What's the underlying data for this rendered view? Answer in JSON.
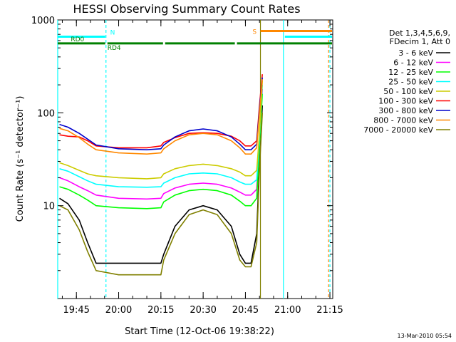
{
  "chart_data": {
    "type": "line",
    "title": "HESSI Observing Summary Count Rates",
    "xlabel": "Start Time (12-Oct-06 19:38:22)",
    "ylabel": "Count Rate (s⁻¹ detector⁻¹)",
    "xlim": [
      "19:38:22",
      "21:16:00"
    ],
    "ylim": [
      1,
      1000
    ],
    "y_scale": "log",
    "x_ticks": [
      "19:45",
      "20:00",
      "20:15",
      "20:30",
      "20:45",
      "21:00",
      "21:15"
    ],
    "y_ticks": [
      "1000",
      "100",
      "10"
    ],
    "legend_header": [
      "Det 1,3,4,5,6,9,",
      "FDecim 1, Att 0"
    ],
    "legend_position": "right",
    "series": [
      {
        "name": "3 - 6 keV",
        "color": "#000000",
        "x": [
          "19:39",
          "19:42",
          "19:46",
          "19:49",
          "19:52",
          "20:00",
          "20:10",
          "20:15",
          "20:16",
          "20:20",
          "20:25",
          "20:30",
          "20:35",
          "20:40",
          "20:43",
          "20:45",
          "20:47",
          "20:49",
          "20:50",
          "20:51"
        ],
        "values": [
          12,
          10.5,
          7,
          4,
          2.4,
          2.4,
          2.4,
          2.4,
          3,
          6,
          9,
          10,
          9,
          6,
          3,
          2.4,
          2.4,
          5,
          30,
          120
        ]
      },
      {
        "name": "6 - 12 keV",
        "color": "#ff00ff",
        "x": [
          "19:39",
          "19:42",
          "19:46",
          "19:49",
          "19:52",
          "20:00",
          "20:10",
          "20:15",
          "20:16",
          "20:20",
          "20:25",
          "20:30",
          "20:35",
          "20:40",
          "20:43",
          "20:45",
          "20:47",
          "20:49",
          "20:50",
          "20:51"
        ],
        "values": [
          20,
          18.5,
          16,
          14.5,
          13,
          12,
          11.8,
          12,
          13.5,
          15.5,
          17,
          17.5,
          17,
          15.5,
          14,
          13,
          13,
          15,
          50,
          180
        ]
      },
      {
        "name": "12 - 25 keV",
        "color": "#00ff00",
        "x": [
          "19:39",
          "19:42",
          "19:46",
          "19:49",
          "19:52",
          "20:00",
          "20:10",
          "20:15",
          "20:16",
          "20:20",
          "20:25",
          "20:30",
          "20:35",
          "20:40",
          "20:43",
          "20:45",
          "20:47",
          "20:49",
          "20:50",
          "20:51"
        ],
        "values": [
          16,
          15,
          13,
          11.5,
          10,
          9.5,
          9.3,
          9.5,
          11,
          13,
          14.5,
          15,
          14.5,
          13,
          11.2,
          10,
          10,
          12,
          45,
          160
        ]
      },
      {
        "name": "25 - 50 keV",
        "color": "#00ffff",
        "x": [
          "19:39",
          "19:42",
          "19:46",
          "19:49",
          "19:52",
          "20:00",
          "20:10",
          "20:15",
          "20:16",
          "20:20",
          "20:25",
          "20:30",
          "20:35",
          "20:40",
          "20:43",
          "20:45",
          "20:47",
          "20:49",
          "20:50",
          "20:51"
        ],
        "values": [
          25,
          23.5,
          20.5,
          18.5,
          17,
          16,
          15.8,
          16,
          17.5,
          20,
          22,
          22.5,
          22,
          20,
          18,
          17,
          17,
          19,
          55,
          200
        ]
      },
      {
        "name": "50 - 100 keV",
        "color": "#cccc00",
        "x": [
          "19:39",
          "19:42",
          "19:46",
          "19:49",
          "19:52",
          "20:00",
          "20:10",
          "20:15",
          "20:16",
          "20:20",
          "20:25",
          "20:30",
          "20:35",
          "20:40",
          "20:43",
          "20:45",
          "20:47",
          "20:49",
          "20:50",
          "20:51"
        ],
        "values": [
          29,
          27,
          24,
          22,
          21,
          20,
          19.5,
          20,
          22,
          25,
          27,
          28,
          27,
          25,
          23,
          21,
          21,
          24,
          60,
          220
        ]
      },
      {
        "name": "100 - 300 keV",
        "color": "#ff0000",
        "x": [
          "19:39",
          "19:42",
          "19:46",
          "19:49",
          "19:52",
          "20:00",
          "20:10",
          "20:15",
          "20:16",
          "20:20",
          "20:25",
          "20:30",
          "20:35",
          "20:40",
          "20:43",
          "20:45",
          "20:47",
          "20:49",
          "20:50",
          "20:51"
        ],
        "values": [
          58,
          56,
          55,
          50,
          44,
          42,
          42,
          44,
          48,
          54,
          60,
          61,
          60,
          56,
          50,
          44,
          44,
          50,
          120,
          260
        ]
      },
      {
        "name": "300 - 800 keV",
        "color": "#0000cc",
        "x": [
          "19:39",
          "19:42",
          "19:46",
          "19:49",
          "19:52",
          "20:00",
          "20:10",
          "20:15",
          "20:16",
          "20:20",
          "20:25",
          "20:30",
          "20:35",
          "20:40",
          "20:43",
          "20:45",
          "20:47",
          "20:49",
          "20:50",
          "20:51"
        ],
        "values": [
          75,
          70,
          60,
          52,
          45,
          41,
          40,
          41,
          45,
          55,
          64,
          67,
          64,
          55,
          46,
          40,
          40,
          46,
          110,
          240
        ]
      },
      {
        "name": "800 - 7000 keV",
        "color": "#ff8800",
        "x": [
          "19:39",
          "19:42",
          "19:46",
          "19:49",
          "19:52",
          "20:00",
          "20:10",
          "20:15",
          "20:16",
          "20:20",
          "20:25",
          "20:30",
          "20:35",
          "20:40",
          "20:43",
          "20:45",
          "20:47",
          "20:49",
          "20:50",
          "20:51"
        ],
        "values": [
          68,
          64,
          54,
          46,
          40,
          37,
          36,
          37,
          41,
          50,
          58,
          60,
          58,
          50,
          42,
          36,
          36,
          42,
          100,
          230
        ]
      },
      {
        "name": "7000 - 20000 keV",
        "color": "#808000",
        "x": [
          "19:39",
          "19:42",
          "19:46",
          "19:49",
          "19:52",
          "20:00",
          "20:10",
          "20:15",
          "20:16",
          "20:20",
          "20:25",
          "20:30",
          "20:35",
          "20:40",
          "20:43",
          "20:45",
          "20:47",
          "20:49",
          "20:50",
          "20:51"
        ],
        "values": [
          10,
          9,
          5.5,
          3.2,
          2,
          1.8,
          1.8,
          1.8,
          2.6,
          5,
          8,
          9,
          8,
          5,
          2.6,
          2.2,
          2.2,
          4,
          25,
          100
        ]
      }
    ],
    "vertical_lines": [
      {
        "x": "19:38:22",
        "color": "#00ffff",
        "style": "solid"
      },
      {
        "x": "19:55:30",
        "color": "#00ffff",
        "style": "dashed"
      },
      {
        "x": "20:50:20",
        "color": "#808000",
        "style": "solid"
      },
      {
        "x": "20:58:30",
        "color": "#00ffff",
        "style": "solid"
      },
      {
        "x": "21:14:30",
        "color": "#ff8800",
        "style": "dashed"
      },
      {
        "x": "21:15:00",
        "color": "#00ffff",
        "style": "dashed"
      }
    ],
    "flag_bars": [
      {
        "label": "N",
        "color": "#00ffff",
        "segments": [
          [
            "19:38:22",
            "19:55:30"
          ],
          [
            "20:58:30",
            "21:16:00"
          ]
        ],
        "level": 660
      },
      {
        "label": "RD0",
        "color": "#008000",
        "segments": [
          [
            "19:38:22",
            "19:55:30"
          ],
          [
            "19:55:30",
            "20:16:00"
          ],
          [
            "20:16:00",
            "20:41:30"
          ],
          [
            "20:41:30",
            "21:16:00"
          ]
        ],
        "level": 560
      },
      {
        "label": "RD4",
        "color": "#008000",
        "segments": [],
        "level": 500
      },
      {
        "label": "S",
        "color": "#ff8800",
        "segments": [
          [
            "20:50:20",
            "21:16:00"
          ]
        ],
        "level": 760
      }
    ]
  },
  "footer_timestamp": "13-Mar-2010 05:54"
}
